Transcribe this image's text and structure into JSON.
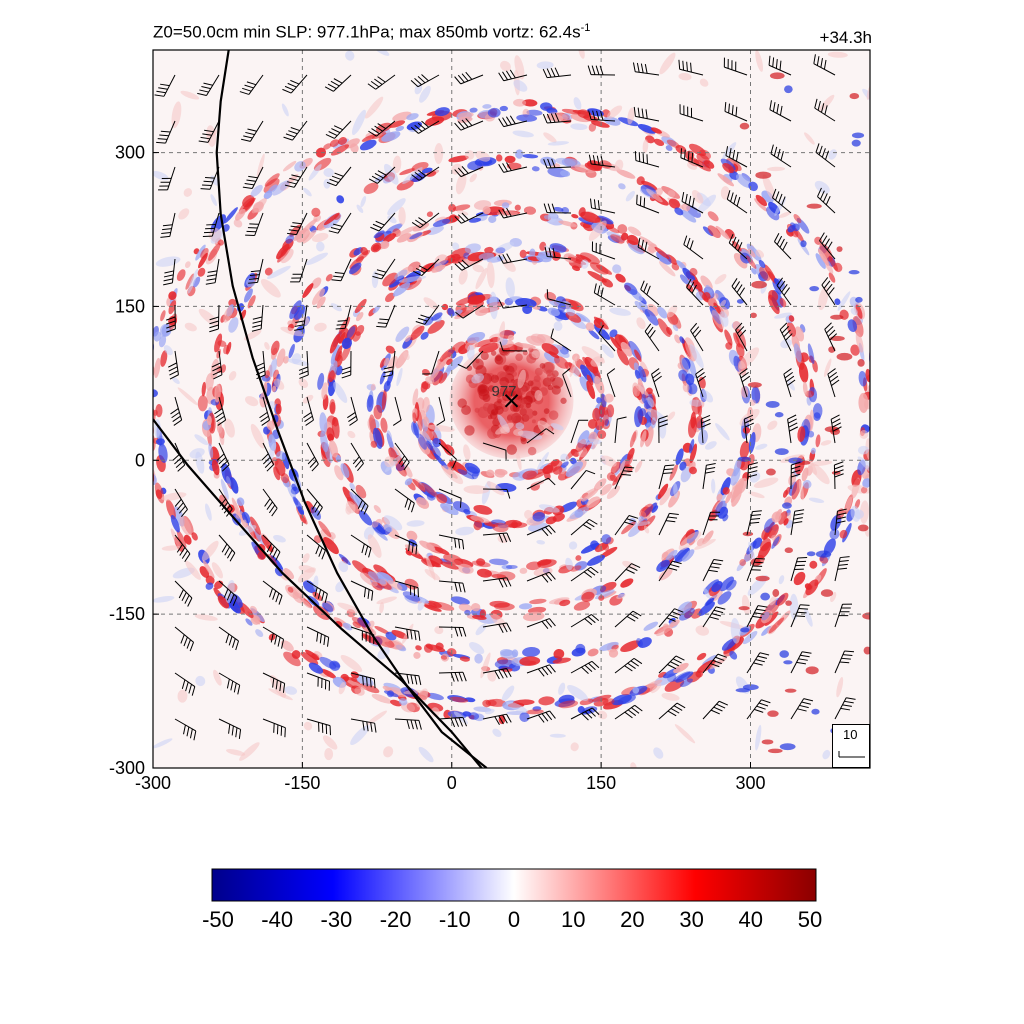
{
  "header": {
    "title_text": "Z0=50.0cm  min SLP: 977.1hPa; max 850mb vortz:  62.4s",
    "title_sup": "-1",
    "forecast_hour": "+34.3h"
  },
  "chart_data": {
    "type": "heatmap",
    "title": "Z0=50.0cm  min SLP: 977.1hPa; max 850mb vortz:  62.4s-1",
    "xlabel": "",
    "ylabel": "",
    "xlim": [
      -300,
      420
    ],
    "ylim": [
      -300,
      400
    ],
    "xticks": [
      -300,
      -150,
      0,
      150,
      300
    ],
    "yticks": [
      -300,
      -150,
      0,
      150,
      300
    ],
    "grid": true,
    "field": "850mb relative vorticity (shaded)",
    "center": {
      "x": 60,
      "y": 58,
      "marker": "x",
      "label": "977"
    },
    "coastlines": [
      [
        [
          -224,
          400
        ],
        [
          -232,
          350
        ],
        [
          -236,
          300
        ],
        [
          -232,
          240
        ],
        [
          -220,
          170
        ],
        [
          -200,
          100
        ],
        [
          -175,
          30
        ],
        [
          -148,
          -40
        ],
        [
          -115,
          -110
        ],
        [
          -80,
          -170
        ],
        [
          -45,
          -220
        ],
        [
          -10,
          -265
        ],
        [
          35,
          -300
        ]
      ],
      [
        [
          -300,
          40
        ],
        [
          -265,
          -5
        ],
        [
          -220,
          -55
        ],
        [
          -170,
          -110
        ],
        [
          -110,
          -165
        ],
        [
          -50,
          -215
        ],
        [
          0,
          -265
        ],
        [
          30,
          -300
        ]
      ]
    ],
    "colorbar": {
      "min": -50,
      "max": 50,
      "ticks": [
        -50,
        -40,
        -30,
        -20,
        -10,
        0,
        10,
        20,
        30,
        40,
        50
      ],
      "colors": [
        "#00008b",
        "#0000ff",
        "#ffffff",
        "#ff0000",
        "#8b0000"
      ]
    },
    "reference_vector": "10"
  }
}
